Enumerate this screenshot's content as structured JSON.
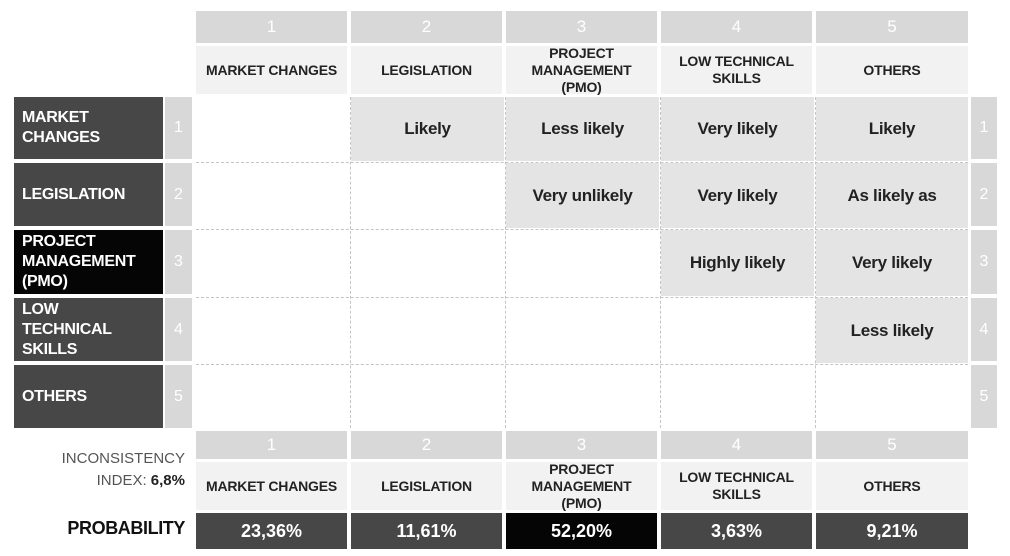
{
  "criteria_numbers": [
    "1",
    "2",
    "3",
    "4",
    "5"
  ],
  "criteria": [
    "MARKET CHANGES",
    "LEGISLATION",
    "PROJECT MANAGEMENT (PMO)",
    "LOW TECHNICAL SKILLS",
    "OTHERS"
  ],
  "row_criteria": [
    "MARKET CHANGES",
    "LEGISLATION",
    "PROJECT MANAGEMENT (PMO)",
    "LOW TECHNICAL SKILLS",
    "OTHERS"
  ],
  "matrix": [
    [
      "",
      "Likely",
      "Less likely",
      "Very likely",
      "Likely"
    ],
    [
      "",
      "",
      "Very unlikely",
      "Very likely",
      "As likely as"
    ],
    [
      "",
      "",
      "",
      "Highly likely",
      "Very likely"
    ],
    [
      "",
      "",
      "",
      "",
      "Less likely"
    ],
    [
      "",
      "",
      "",
      "",
      ""
    ]
  ],
  "inconsistency": {
    "label": "INCONSISTENCY",
    "index_label": "INDEX:",
    "index_value": "6,8%"
  },
  "probability": {
    "label": "PROBABILITY",
    "values": [
      "23,36%",
      "11,61%",
      "52,20%",
      "3,63%",
      "9,21%"
    ]
  },
  "colors": {
    "row_header": "#474747",
    "highlight": "#050505",
    "filled_cell": "#e4e4e4",
    "number_bar": "#d8d8d8"
  }
}
